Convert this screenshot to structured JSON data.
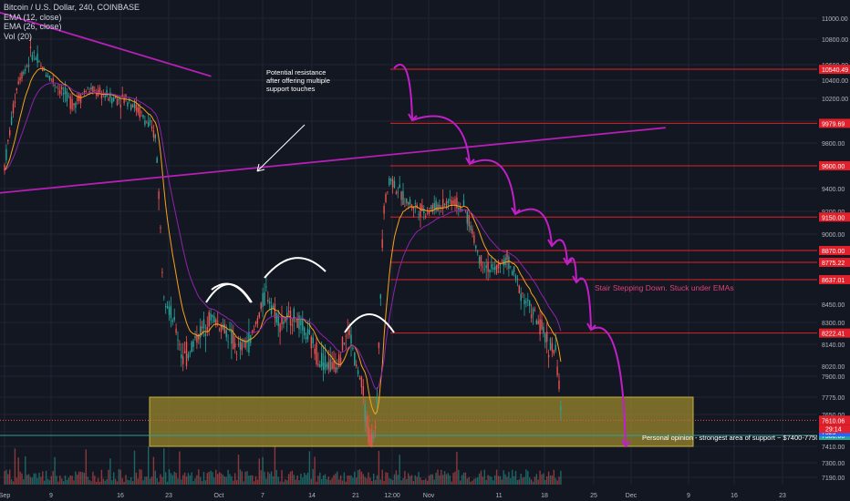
{
  "header": {
    "symbol_line": "Bitcoin / U.S. Dollar, 240, COINBASE",
    "ema12": "EMA (12, close)",
    "ema26": "EMA (26, close)",
    "vol": "Vol (20)"
  },
  "annotations": {
    "resistance_text": [
      "Potential resistance",
      "after offering multiple",
      "support touches"
    ],
    "stair_text": "Stair Stepping Down. Stuck under EMAs",
    "support_text": "Personal opinion - strongest area of support ~ $7400-7750"
  },
  "colors": {
    "background": "#131722",
    "up": "#26a69a",
    "down": "#ef5350",
    "ema12": "#f7a21b",
    "ema26": "#8e24aa",
    "trendline": "#b41fb4",
    "level_line": "#e0202a",
    "support_zone": "#a08c2e",
    "axis_text": "#b2b5be"
  },
  "chart_data": {
    "type": "candlestick",
    "title": "Bitcoin / U.S. Dollar, 240, COINBASE",
    "series_names": [
      "EMA (12, close)",
      "EMA (26, close)",
      "Vol (20)"
    ],
    "y_ticks": [
      11000,
      10800,
      10600,
      10400,
      10200,
      10000,
      9800,
      9600,
      9400,
      9200,
      9000,
      8870,
      8637,
      8450,
      8300,
      8140,
      8020,
      7900,
      7775,
      7650,
      7530,
      7410,
      7300,
      7190
    ],
    "y_tick_labels": [
      "11000.00",
      "10800.00",
      "10600.00",
      "10400.00",
      "10200.00",
      "10000.00",
      "9800.00",
      "9600.00",
      "9400.00",
      "9200.00",
      "9000.00",
      "8870.00",
      "8637.01",
      "8450.00",
      "8300.00",
      "8140.00",
      "8020.00",
      "7900.00",
      "7775.00",
      "7650.00",
      "7530.00",
      "7410.00",
      "7300.00",
      "7190.00"
    ],
    "x_ticks": [
      "Sep",
      "9",
      "16",
      "23",
      "Oct",
      "7",
      "14",
      "21",
      "12:00",
      "Nov",
      "11",
      "18",
      "25",
      "Dec",
      "9",
      "16",
      "23"
    ],
    "price_level_labels": [
      "10540.49",
      "9979.69",
      "9600.00",
      "9150.00",
      "8870.00",
      "8775.22",
      "8637.01",
      "8222.41",
      "7610.06",
      "7500.00",
      "7529"
    ],
    "current_price": "7610.06",
    "countdown": "29:14",
    "support_zone": [
      7410,
      7775
    ],
    "key_levels": [
      10540.49,
      9979.69,
      9600.0,
      9150.0,
      8870.0,
      8775.22,
      8637.01,
      8222.41
    ],
    "trendlines": [
      {
        "name": "descending",
        "from": [
          "Aug 30",
          11080
        ],
        "to": [
          "Oct 1",
          10450
        ]
      },
      {
        "name": "ascending",
        "from": [
          "Aug 31",
          9360
        ],
        "to": [
          "Dec 6",
          9940
        ]
      }
    ],
    "price_path": [
      [
        "Sep 1",
        9600
      ],
      [
        "Sep 3",
        10400
      ],
      [
        "Sep 5",
        10700
      ],
      [
        "Sep 7",
        10500
      ],
      [
        "Sep 9",
        10300
      ],
      [
        "Sep 11",
        10150
      ],
      [
        "Sep 13",
        10300
      ],
      [
        "Sep 15",
        10250
      ],
      [
        "Sep 17",
        10200
      ],
      [
        "Sep 19",
        10200
      ],
      [
        "Sep 21",
        10050
      ],
      [
        "Sep 23",
        9850
      ],
      [
        "Sep 24",
        8600
      ],
      [
        "Sep 25",
        8400
      ],
      [
        "Sep 27",
        8050
      ],
      [
        "Sep 29",
        8200
      ],
      [
        "Oct 1",
        8350
      ],
      [
        "Oct 3",
        8250
      ],
      [
        "Oct 5",
        8100
      ],
      [
        "Oct 7",
        8200
      ],
      [
        "Oct 9",
        8550
      ],
      [
        "Oct 11",
        8300
      ],
      [
        "Oct 13",
        8350
      ],
      [
        "Oct 15",
        8200
      ],
      [
        "Oct 17",
        8050
      ],
      [
        "Oct 19",
        8000
      ],
      [
        "Oct 21",
        8250
      ],
      [
        "Oct 23",
        7800
      ],
      [
        "Oct 24",
        7450
      ],
      [
        "Oct 25",
        7550
      ],
      [
        "Oct 26",
        9200
      ],
      [
        "Oct 27",
        9500
      ],
      [
        "Oct 29",
        9300
      ],
      [
        "Nov 1",
        9200
      ],
      [
        "Nov 3",
        9250
      ],
      [
        "Nov 5",
        9300
      ],
      [
        "Nov 7",
        9200
      ],
      [
        "Nov 9",
        8800
      ],
      [
        "Nov 11",
        8700
      ],
      [
        "Nov 13",
        8800
      ],
      [
        "Nov 15",
        8550
      ],
      [
        "Nov 17",
        8350
      ],
      [
        "Nov 19",
        8150
      ],
      [
        "Nov 20",
        8100
      ],
      [
        "Nov 21",
        7610
      ]
    ]
  }
}
